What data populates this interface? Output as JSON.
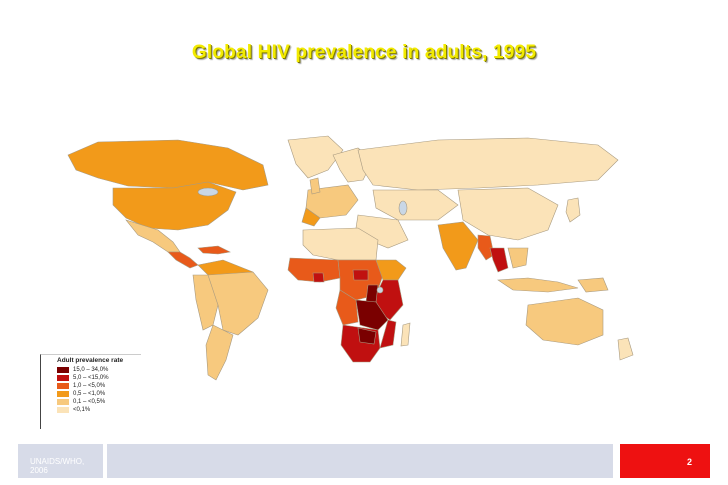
{
  "slide": {
    "title": "Global HIV prevalence in adults, 1995",
    "source": "UNAIDS/WHO, 2006",
    "page_number": "2"
  },
  "legend": {
    "title": "Adult prevalence rate",
    "items": [
      {
        "label": "15,0 – 34,0%",
        "color": "#7a0000"
      },
      {
        "label": "5,0 – <15,0%",
        "color": "#c01010"
      },
      {
        "label": "1,0 – <5,0%",
        "color": "#e85a1a"
      },
      {
        "label": "0,5 – <1,0%",
        "color": "#f29a1a"
      },
      {
        "label": "0,1 – <0,5%",
        "color": "#f7c97e"
      },
      {
        "label": "<0,1%",
        "color": "#fbe3b8"
      }
    ]
  },
  "map_colors": {
    "ocean": "#ffffff",
    "border": "#a89a80",
    "lakes": "#c9d7e6"
  }
}
